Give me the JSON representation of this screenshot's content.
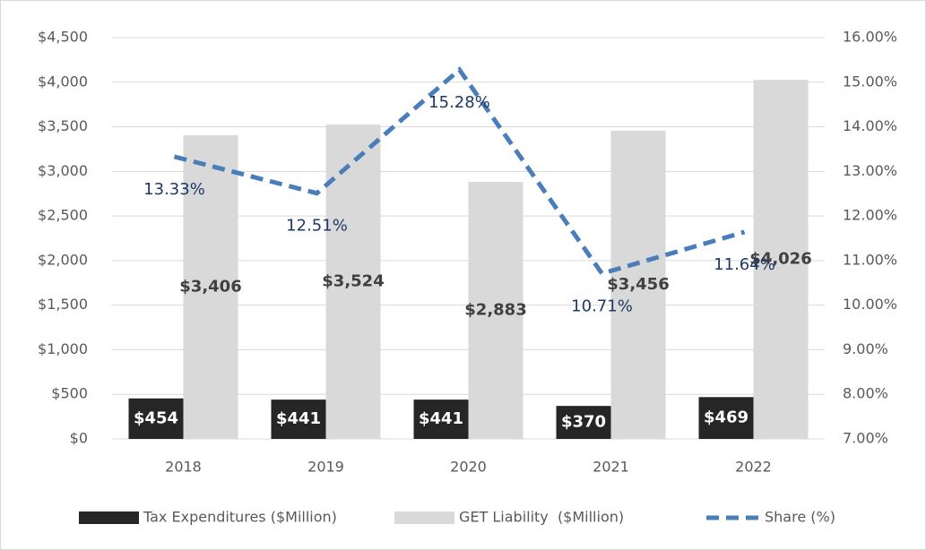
{
  "chart_data": {
    "type": "bar",
    "categories": [
      "2018",
      "2019",
      "2020",
      "2021",
      "2022"
    ],
    "series": [
      {
        "name": "Tax Expenditures ($Million)",
        "color": "#262626",
        "values": [
          454,
          441,
          441,
          370,
          469
        ],
        "value_labels": [
          "$454",
          "$441",
          "$441",
          "$370",
          "$469"
        ]
      },
      {
        "name": "GET Liability  ($Million)",
        "color": "#d9d9d9",
        "values": [
          3406,
          3524,
          2883,
          3456,
          4026
        ],
        "value_labels": [
          "$3,406",
          "$3,524",
          "$2,883",
          "$3,456",
          "$4,026"
        ]
      },
      {
        "name": "Share (%)",
        "color": "#4a7ebb",
        "type": "line",
        "axis": "y2",
        "values": [
          13.33,
          12.51,
          15.28,
          10.71,
          11.64
        ],
        "value_labels": [
          "13.33%",
          "12.51%",
          "15.28%",
          "10.71%",
          "11.64%"
        ]
      }
    ],
    "ylim": [
      0,
      4500
    ],
    "yticks": [
      {
        "value": 0,
        "label": "$0"
      },
      {
        "value": 500,
        "label": "$500"
      },
      {
        "value": 1000,
        "label": "$1,000"
      },
      {
        "value": 1500,
        "label": "$1,500"
      },
      {
        "value": 2000,
        "label": "$2,000"
      },
      {
        "value": 2500,
        "label": "$2,500"
      },
      {
        "value": 3000,
        "label": "$3,000"
      },
      {
        "value": 3500,
        "label": "$3,500"
      },
      {
        "value": 4000,
        "label": "$4,000"
      },
      {
        "value": 4500,
        "label": "$4,500"
      }
    ],
    "y2lim": [
      7,
      16
    ],
    "y2ticks": [
      {
        "value": 7,
        "label": "7.00%"
      },
      {
        "value": 8,
        "label": "8.00%"
      },
      {
        "value": 9,
        "label": "9.00%"
      },
      {
        "value": 10,
        "label": "10.00%"
      },
      {
        "value": 11,
        "label": "11.00%"
      },
      {
        "value": 12,
        "label": "12.00%"
      },
      {
        "value": 13,
        "label": "13.00%"
      },
      {
        "value": 14,
        "label": "14.00%"
      },
      {
        "value": 15,
        "label": "15.00%"
      },
      {
        "value": 16,
        "label": "16.00%"
      }
    ],
    "grid": true,
    "legend": "bottom"
  }
}
